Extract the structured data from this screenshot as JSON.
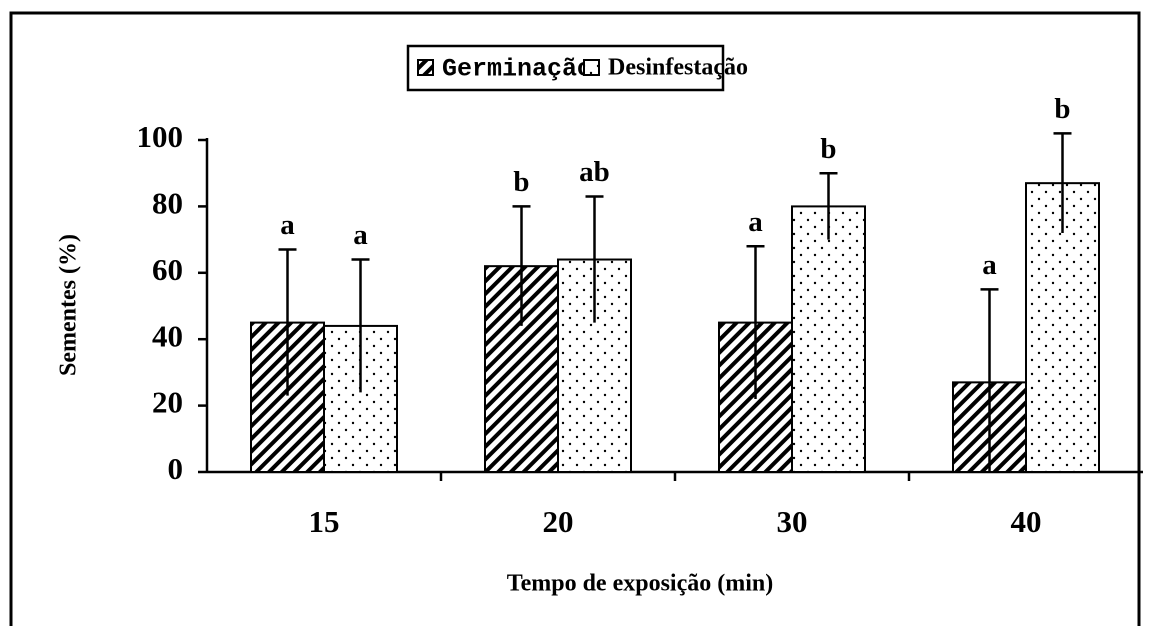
{
  "chart_data": {
    "type": "bar",
    "x_label": "Tempo de exposição (min)",
    "y_label": "Sementes (%)",
    "categories": [
      "15",
      "20",
      "30",
      "40"
    ],
    "series": [
      {
        "name": "Germinação",
        "color": "#000000",
        "pattern": "hatch",
        "values": [
          45,
          62,
          45,
          27
        ],
        "errors": [
          22,
          18,
          23,
          28
        ],
        "letters": [
          "a",
          "b",
          "a",
          "a"
        ]
      },
      {
        "name": "Desinfestação",
        "color": "#000000",
        "pattern": "dots",
        "values": [
          44,
          64,
          80,
          87
        ],
        "errors": [
          20,
          19,
          10,
          15
        ],
        "letters": [
          "a",
          "ab",
          "b",
          "b"
        ]
      }
    ],
    "ylim": [
      0,
      100
    ],
    "yticks": [
      0,
      20,
      40,
      60,
      80,
      100
    ]
  }
}
